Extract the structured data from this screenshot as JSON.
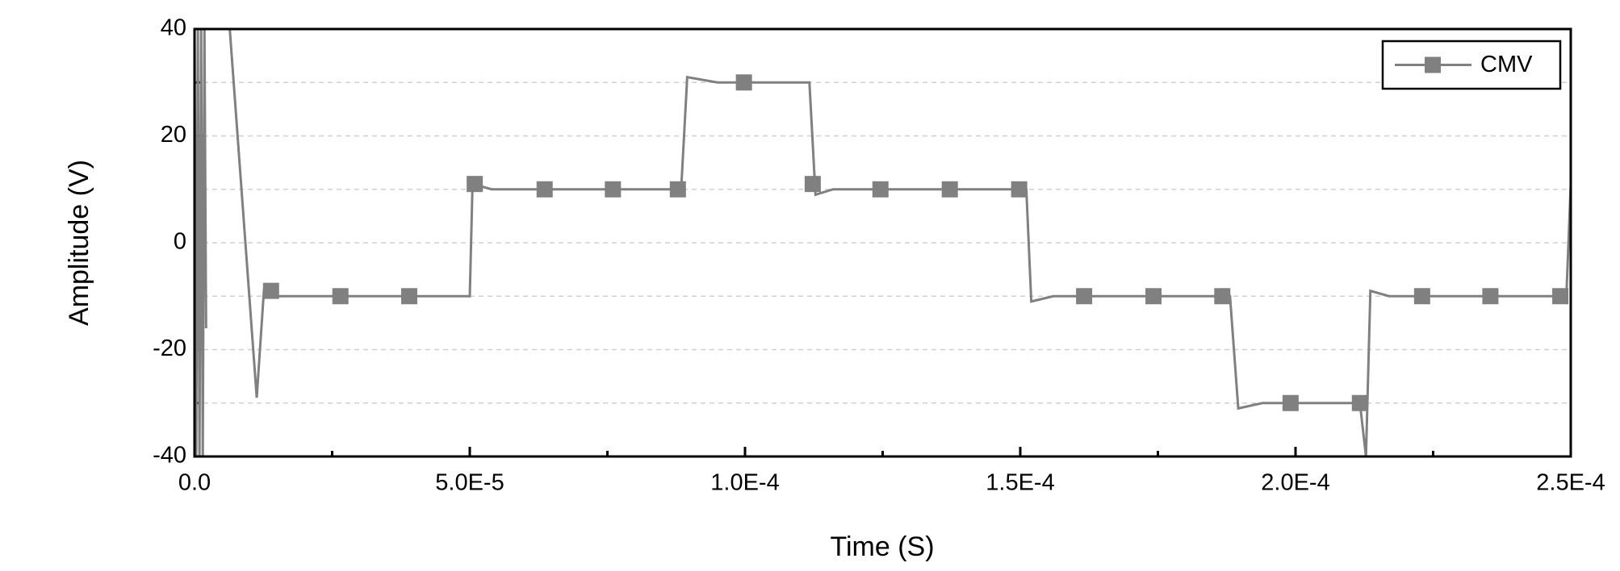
{
  "chart_data": {
    "type": "line",
    "x_label": "Time (S)",
    "y_label": "Amplitude (V)",
    "xlim": [
      0,
      0.00025
    ],
    "ylim": [
      -40,
      40
    ],
    "xticks": [
      {
        "value": 0,
        "label": "0.0"
      },
      {
        "value": 5e-05,
        "label": "5.0E-5"
      },
      {
        "value": 0.0001,
        "label": "1.0E-4"
      },
      {
        "value": 0.00015,
        "label": "1.5E-4"
      },
      {
        "value": 0.0002,
        "label": "2.0E-4"
      },
      {
        "value": 0.00025,
        "label": "2.5E-4"
      }
    ],
    "yticks": [
      -40,
      -20,
      0,
      20,
      40
    ],
    "grid": true,
    "legend": "upper right",
    "series": [
      {
        "name": "CMV",
        "color": "#808080",
        "x": [
          0,
          3e-07,
          6e-07,
          9e-07,
          1.2e-06,
          1.5e-06,
          1.8e-06,
          2.1e-06,
          2.4e-06,
          6.4e-06,
          1.13e-05,
          1.26e-05,
          1.4e-05,
          5e-05,
          5.05e-05,
          5.4e-05,
          8.84e-05,
          8.95e-05,
          9.5e-05,
          0.0001117,
          0.0001128,
          0.000116,
          0.0001511,
          0.000152,
          0.000156,
          0.0001881,
          0.0001896,
          0.000194,
          0.0002117,
          0.0002128,
          0.0002136,
          0.000217,
          0.0002492,
          0.00025
        ],
        "values": [
          40,
          -40,
          40,
          -40,
          40,
          -40,
          40,
          -16,
          null,
          40,
          -29,
          -9,
          -10,
          -10,
          11,
          10,
          10,
          31,
          30,
          30,
          9,
          10,
          10,
          -11,
          -10,
          -10,
          -31,
          -30,
          -30,
          -40,
          -9,
          -10,
          -10,
          11
        ],
        "marker_x": [
          1.39e-05,
          2.65e-05,
          3.9e-05,
          5.09e-05,
          6.36e-05,
          7.6e-05,
          8.78e-05,
          9.98e-05,
          0.0001123,
          0.0001246,
          0.0001372,
          0.0001498,
          0.0001616,
          0.0001742,
          0.0001867,
          0.0001991,
          0.0002117,
          0.000223,
          0.0002354,
          0.0002481
        ],
        "marker_values": [
          -9,
          -10,
          -10,
          11,
          10,
          10,
          10,
          30,
          11,
          10,
          10,
          10,
          -10,
          -10,
          -10,
          -30,
          -30,
          -10,
          -10,
          -10
        ]
      }
    ]
  }
}
